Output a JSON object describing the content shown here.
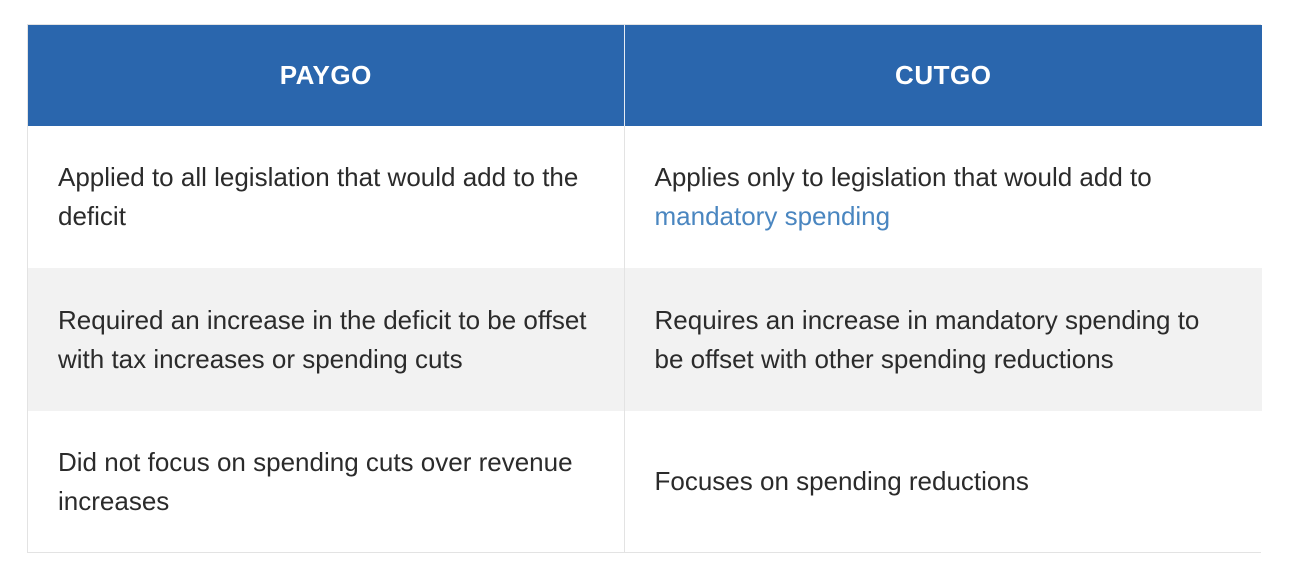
{
  "headers": {
    "left": "PAYGO",
    "right": "CUTGO"
  },
  "rows": [
    {
      "left": "Applied to all legislation that would add to the deficit",
      "right_text": "Applies only to legislation that would add to",
      "right_link": "mandatory spending"
    },
    {
      "left": "Required an increase in the deficit to be offset with tax increases or spending cuts",
      "right": "Requires an increase in mandatory spending to be offset with other spending reductions"
    },
    {
      "left": "Did not focus on spending cuts over revenue increases",
      "right": "Focuses on spending reductions"
    }
  ],
  "colors": {
    "header_bg": "#2a66ad",
    "header_text": "#ffffff",
    "stripe_bg": "#f2f2f2",
    "link": "#4a86c0"
  }
}
